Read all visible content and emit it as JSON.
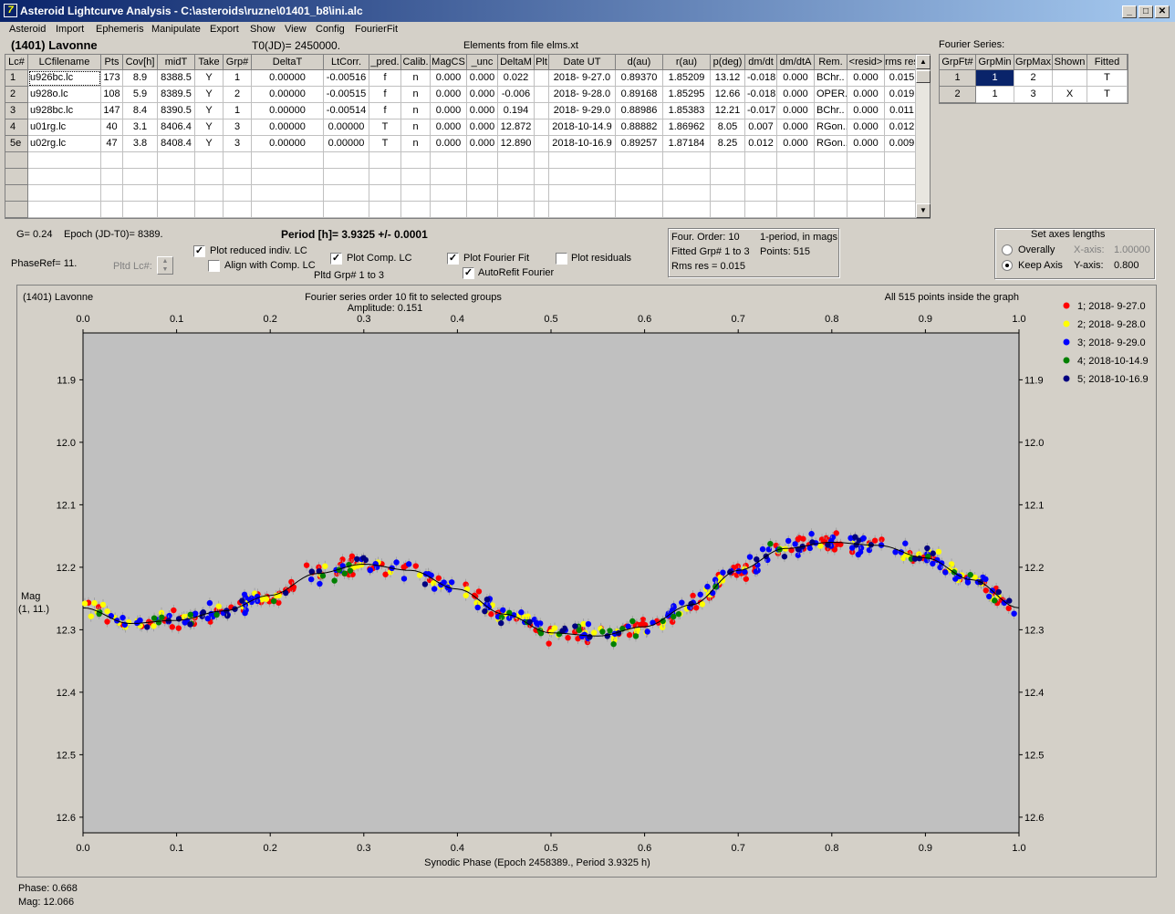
{
  "window": {
    "title": "Asteroid Lightcurve Analysis - C:\\asteroids\\ruzne\\01401_b8\\ini.alc",
    "icon_glyph": "7"
  },
  "menu": [
    "Asteroid",
    "Import",
    "Ephemeris",
    "Manipulate",
    "Export",
    "Show",
    "View",
    "Config",
    "FourierFit"
  ],
  "header": {
    "asteroid": "(1401) Lavonne",
    "t0": "T0(JD)= 2450000.",
    "elements": "Elements from file elms.xt"
  },
  "lc_table": {
    "columns": [
      "Lc#",
      "LCfilename",
      "Pts",
      "Cov[h]",
      "midT",
      "Take",
      "Grp#",
      "DeltaT",
      "LtCorr.",
      "_pred.",
      "Calib.",
      "MagCS",
      "_unc",
      "DeltaM",
      "Plt",
      "Date UT",
      "d(au)",
      "r(au)",
      "p(deg)",
      "dm/dt",
      "dm/dtA",
      "Rem.",
      "<resid>",
      "rms res"
    ],
    "rows": [
      [
        "1",
        "u926bc.lc",
        "173",
        "8.9",
        "8388.5",
        "Y",
        "1",
        "0.00000",
        "-0.00516",
        "f",
        "n",
        "0.000",
        "0.000",
        "0.022",
        "",
        "2018- 9-27.0",
        "0.89370",
        "1.85209",
        "13.12",
        "-0.018",
        "0.000",
        "BChr..",
        "0.000",
        "0.015"
      ],
      [
        "2",
        "u928o.lc",
        "108",
        "5.9",
        "8389.5",
        "Y",
        "2",
        "0.00000",
        "-0.00515",
        "f",
        "n",
        "0.000",
        "0.000",
        "-0.006",
        "",
        "2018- 9-28.0",
        "0.89168",
        "1.85295",
        "12.66",
        "-0.018",
        "0.000",
        "OPER.",
        "0.000",
        "0.019"
      ],
      [
        "3",
        "u928bc.lc",
        "147",
        "8.4",
        "8390.5",
        "Y",
        "1",
        "0.00000",
        "-0.00514",
        "f",
        "n",
        "0.000",
        "0.000",
        "0.194",
        "",
        "2018- 9-29.0",
        "0.88986",
        "1.85383",
        "12.21",
        "-0.017",
        "0.000",
        "BChr..",
        "0.000",
        "0.011"
      ],
      [
        "4",
        "u01rg.lc",
        "40",
        "3.1",
        "8406.4",
        "Y",
        "3",
        "0.00000",
        "0.00000",
        "T",
        "n",
        "0.000",
        "0.000",
        "12.872",
        "",
        "2018-10-14.9",
        "0.88882",
        "1.86962",
        "8.05",
        "0.007",
        "0.000",
        "RGon..",
        "0.000",
        "0.012"
      ],
      [
        "5e",
        "u02rg.lc",
        "47",
        "3.8",
        "8408.4",
        "Y",
        "3",
        "0.00000",
        "0.00000",
        "T",
        "n",
        "0.000",
        "0.000",
        "12.890",
        "",
        "2018-10-16.9",
        "0.89257",
        "1.87184",
        "8.25",
        "0.012",
        "0.000",
        "RGon..",
        "0.000",
        "0.009"
      ]
    ]
  },
  "fourier_table": {
    "title": "Fourier Series:",
    "columns": [
      "GrpFt#",
      "GrpMin",
      "GrpMax",
      "Shown",
      "Fitted"
    ],
    "rows": [
      [
        "1",
        "1",
        "2",
        "",
        "T"
      ],
      [
        "2",
        "1",
        "3",
        "X",
        "T"
      ]
    ]
  },
  "controls": {
    "g_label": "G= 0.24",
    "epoch_label": "Epoch (JD-T0)= 8389.",
    "period_label": "Period [h]= 3.9325 +/- 0.0001",
    "phase_ref": "PhaseRef= 11.",
    "pltd_lc": "Pltd Lc#:",
    "plot_reduced": "Plot reduced indiv. LC",
    "align_comp": "Align with Comp. LC",
    "plot_comp": "Plot Comp. LC",
    "pltd_grp": "Pltd Grp#  1   to   3",
    "plot_fourier": "Plot Fourier Fit",
    "autorefit": "AutoRefit Fourier",
    "plot_residuals": "Plot residuals",
    "check_reduced": "✓",
    "check_align": "",
    "check_comp": "✓",
    "check_fourier": "✓",
    "check_autorefit": "✓",
    "check_residuals": ""
  },
  "info_box": {
    "order": "Four. Order: 10",
    "mode": "1-period, in mags",
    "fitted": "Fitted Grp# 1 to 3",
    "points": "Points: 515",
    "rms": "Rms res     = 0.015"
  },
  "axes_box": {
    "title": "Set axes lengths",
    "overally": "Overally",
    "keep": "Keep Axis",
    "xaxis_label": "X-axis:",
    "xaxis_value": "1.00000",
    "yaxis_label": "Y-axis:",
    "yaxis_value": "0.800"
  },
  "status": {
    "phase": "Phase:  0.668",
    "mag": "Mag:    12.066"
  },
  "chart_data": {
    "type": "scatter",
    "title": "Fourier series order 10 fit to selected groups",
    "subtitle": "Amplitude: 0.151",
    "top_left": "(1401) Lavonne",
    "top_right": "All 515 points inside the graph",
    "xlabel": "Synodic Phase (Epoch 2458389., Period 3.9325 h)",
    "ylabel": "Mag",
    "ylabel2": "(1, 11.)",
    "xlim": [
      0,
      1
    ],
    "ylim": [
      12.625,
      11.825
    ],
    "y_inverted": true,
    "x_ticks": [
      "0.0",
      "0.1",
      "0.2",
      "0.3",
      "0.4",
      "0.5",
      "0.6",
      "0.7",
      "0.8",
      "0.9",
      "1.0"
    ],
    "y_ticks": [
      "11.9",
      "12.0",
      "12.1",
      "12.2",
      "12.3",
      "12.4",
      "12.5",
      "12.6"
    ],
    "fit_curve": {
      "phase": [
        0,
        0.05,
        0.1,
        0.15,
        0.2,
        0.25,
        0.3,
        0.35,
        0.4,
        0.45,
        0.5,
        0.55,
        0.6,
        0.65,
        0.7,
        0.75,
        0.8,
        0.85,
        0.9,
        0.95,
        1.0
      ],
      "mag": [
        12.265,
        12.29,
        12.285,
        12.27,
        12.245,
        12.21,
        12.195,
        12.205,
        12.235,
        12.275,
        12.305,
        12.31,
        12.295,
        12.26,
        12.205,
        12.17,
        12.16,
        12.165,
        12.185,
        12.22,
        12.265
      ]
    },
    "series": [
      {
        "name": "1; 2018- 9-27.0",
        "color": "#ff0000"
      },
      {
        "name": "2; 2018- 9-28.0",
        "color": "#ffff00"
      },
      {
        "name": "3; 2018- 9-29.0",
        "color": "#0000ff"
      },
      {
        "name": "4; 2018-10-14.9",
        "color": "#008000"
      },
      {
        "name": "5; 2018-10-16.9",
        "color": "#000080"
      }
    ],
    "legend_position": "top-right",
    "points_total": 515
  }
}
